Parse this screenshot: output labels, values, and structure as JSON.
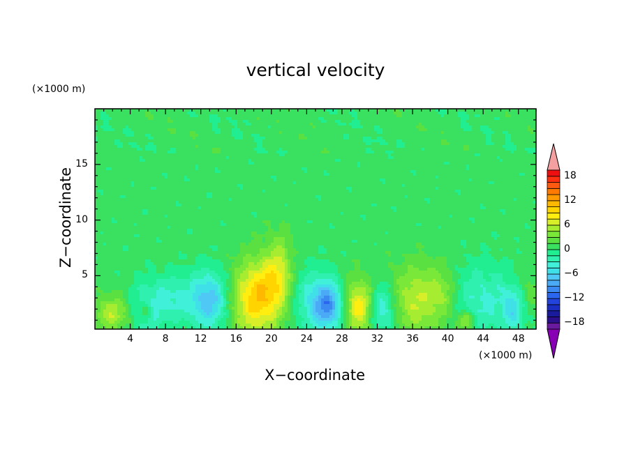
{
  "chart_data": {
    "type": "heatmap",
    "title": "vertical velocity",
    "xlabel": "X−coordinate",
    "ylabel": "Z−coordinate",
    "x_unit": "(×1000 m)",
    "y_unit": "(×1000 m)",
    "xlim": [
      0,
      50
    ],
    "ylim": [
      0.2,
      20
    ],
    "x_ticks": [
      4,
      8,
      12,
      16,
      20,
      24,
      28,
      32,
      36,
      40,
      44,
      48
    ],
    "y_ticks": [
      5,
      10,
      15
    ],
    "colorbar": {
      "levels": [
        -21,
        -19.5,
        -18,
        -16.5,
        -15,
        -13.5,
        -12,
        -10.5,
        -9,
        -7.5,
        -6,
        -4.5,
        -3,
        -1.5,
        0,
        1.5,
        3,
        4.5,
        6,
        7.5,
        9,
        10.5,
        12,
        13.5,
        15,
        16.5,
        18,
        19.5,
        21
      ],
      "tick_labels": [
        "18",
        "12",
        "6",
        "0",
        "−6",
        "−12",
        "−18"
      ],
      "tick_values": [
        18,
        12,
        6,
        0,
        -6,
        -12,
        -18
      ],
      "colors": [
        "#8800b4",
        "#6a1a9e",
        "#2b0f8c",
        "#1a1a9c",
        "#1a2ec2",
        "#2244dd",
        "#2a66ee",
        "#3a8af2",
        "#4aaaf5",
        "#50c8f5",
        "#40e0e8",
        "#40f0d8",
        "#30f0b0",
        "#20ee90",
        "#3ae060",
        "#5ae040",
        "#7ae838",
        "#a6ec30",
        "#d8ee28",
        "#ffee10",
        "#ffd400",
        "#ffb800",
        "#ff9a00",
        "#ff7a00",
        "#ff5a10",
        "#ff3010",
        "#ee1010",
        "#f4a0a0"
      ]
    },
    "features": [
      {
        "x": 2.0,
        "z": 1.6,
        "peak": 5.2,
        "sx": 1.4,
        "sz": 1.1
      },
      {
        "x": 6.0,
        "z": 2.0,
        "peak": -4.0,
        "sx": 1.4,
        "sz": 1.8
      },
      {
        "x": 5.8,
        "z": 1.8,
        "peak": 4.0,
        "sx": 0.5,
        "sz": 0.6
      },
      {
        "x": 9.0,
        "z": 3.0,
        "peak": -3.5,
        "sx": 1.5,
        "sz": 1.5
      },
      {
        "x": 13.0,
        "z": 2.8,
        "peak": -8.0,
        "sx": 1.6,
        "sz": 1.8
      },
      {
        "x": 18.0,
        "z": 2.8,
        "peak": 8.0,
        "sx": 2.0,
        "sz": 2.4
      },
      {
        "x": 21.0,
        "z": 6.0,
        "peak": 3.5,
        "sx": 1.0,
        "sz": 2.2
      },
      {
        "x": 20.0,
        "z": 4.0,
        "peak": 4.0,
        "sx": 1.5,
        "sz": 2.0
      },
      {
        "x": 24.5,
        "z": 2.8,
        "peak": -4.0,
        "sx": 1.5,
        "sz": 2.0
      },
      {
        "x": 26.5,
        "z": 2.3,
        "peak": -9.0,
        "sx": 1.2,
        "sz": 1.5
      },
      {
        "x": 30.0,
        "z": 2.2,
        "peak": 8.0,
        "sx": 1.2,
        "sz": 1.7
      },
      {
        "x": 32.5,
        "z": 2.0,
        "peak": -6.0,
        "sx": 1.2,
        "sz": 1.6
      },
      {
        "x": 36.5,
        "z": 2.8,
        "peak": 5.5,
        "sx": 2.3,
        "sz": 2.2
      },
      {
        "x": 39.5,
        "z": 3.5,
        "peak": 2.5,
        "sx": 1.0,
        "sz": 1.5
      },
      {
        "x": 42.0,
        "z": 0.9,
        "peak": 5.5,
        "sx": 0.7,
        "sz": 0.6
      },
      {
        "x": 44.0,
        "z": 2.8,
        "peak": -4.0,
        "sx": 2.5,
        "sz": 2.2
      },
      {
        "x": 47.5,
        "z": 2.0,
        "peak": -5.0,
        "sx": 0.9,
        "sz": 1.5
      },
      {
        "x": 49.0,
        "z": 3.5,
        "peak": 2.0,
        "sx": 1.0,
        "sz": 1.3
      }
    ]
  }
}
